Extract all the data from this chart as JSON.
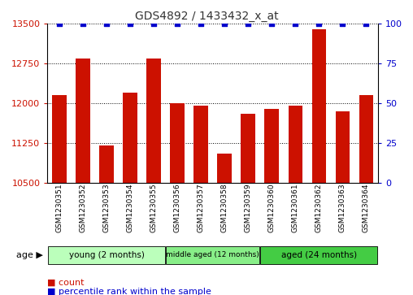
{
  "title": "GDS4892 / 1433432_x_at",
  "samples": [
    "GSM1230351",
    "GSM1230352",
    "GSM1230353",
    "GSM1230354",
    "GSM1230355",
    "GSM1230356",
    "GSM1230357",
    "GSM1230358",
    "GSM1230359",
    "GSM1230360",
    "GSM1230361",
    "GSM1230362",
    "GSM1230363",
    "GSM1230364"
  ],
  "counts": [
    12150,
    12850,
    11200,
    12200,
    12850,
    12000,
    11950,
    11050,
    11800,
    11900,
    11950,
    13400,
    11850,
    12150
  ],
  "percentiles": [
    100,
    100,
    100,
    100,
    100,
    100,
    100,
    100,
    100,
    100,
    100,
    100,
    100,
    100
  ],
  "ylim_left": [
    10500,
    13500
  ],
  "ylim_right": [
    0,
    100
  ],
  "yticks_left": [
    10500,
    11250,
    12000,
    12750,
    13500
  ],
  "yticks_right": [
    0,
    25,
    50,
    75,
    100
  ],
  "bar_color": "#cc1100",
  "dot_color": "#0000cc",
  "title_color": "#333333",
  "axis_color_left": "#cc1100",
  "axis_color_right": "#0000cc",
  "grid_color": "#000000",
  "group_colors": [
    "#bbffbb",
    "#88ee88",
    "#44cc44"
  ],
  "groups": [
    {
      "label": "young (2 months)",
      "start": 0,
      "end": 5
    },
    {
      "label": "middle aged (12 months)",
      "start": 5,
      "end": 9
    },
    {
      "label": "aged (24 months)",
      "start": 9,
      "end": 14
    }
  ],
  "age_label": "age",
  "legend_count_label": "count",
  "legend_percentile_label": "percentile rank within the sample",
  "bar_width": 0.6
}
